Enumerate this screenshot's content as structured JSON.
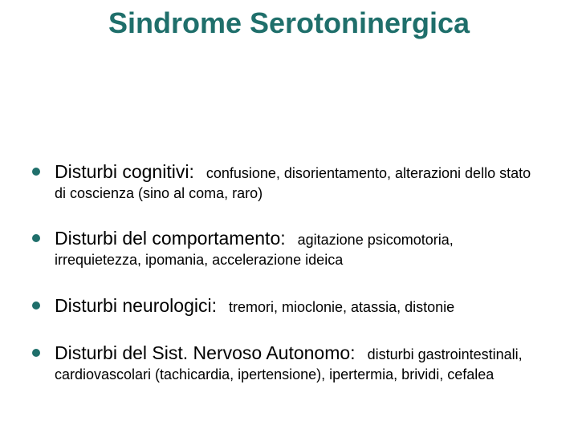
{
  "title": "Sindrome Serotoninergica",
  "items": [
    {
      "lead": "Disturbi cognitivi:",
      "detail_inline": "confusione, disorientamento, alterazioni dello stato",
      "detail_cont": "di coscienza (sino al coma, raro)"
    },
    {
      "lead": "Disturbi del comportamento:",
      "detail_inline": "agitazione psicomotoria,",
      "detail_cont": "irrequietezza, ipomania, accelerazione ideica"
    },
    {
      "lead": "Disturbi neurologici:",
      "detail_inline": "tremori, mioclonie, atassia, distonie",
      "detail_cont": ""
    },
    {
      "lead": "Disturbi del Sist. Nervoso Autonomo:",
      "detail_inline": "disturbi gastrointestinali,",
      "detail_cont": "cardiovascolari (tachicardia, ipertensione), ipertermia, brividi, cefalea"
    }
  ],
  "colors": {
    "title_color": "#1f6f6b",
    "bullet_color": "#1f6f6b",
    "text_color": "#000000",
    "background": "#ffffff"
  },
  "typography": {
    "title_fontsize": 36,
    "lead_fontsize": 23,
    "detail_fontsize": 18
  }
}
